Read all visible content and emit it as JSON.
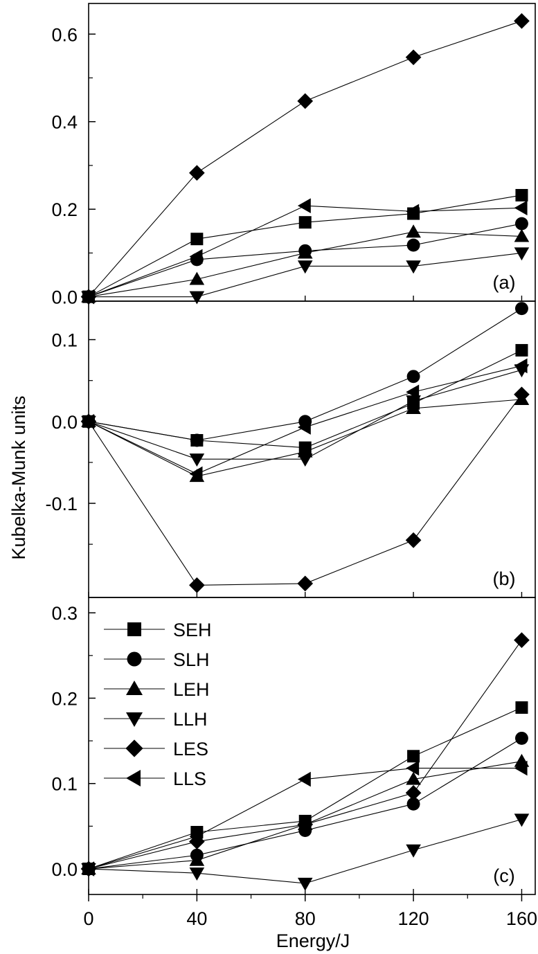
{
  "chart_data": {
    "type": "line",
    "shared_x": {
      "values": [
        0,
        40,
        80,
        120,
        160
      ],
      "label": "Energy/J",
      "lim": [
        0,
        165
      ],
      "ticks": [
        0,
        40,
        80,
        120,
        160
      ],
      "tick_labels": [
        "0",
        "40",
        "80",
        "120",
        "160"
      ]
    },
    "ylabel": "Kubelka-Munk units",
    "legend": {
      "position": "top-left of panel (c)",
      "entries": [
        {
          "name": "SEH",
          "marker": "square"
        },
        {
          "name": "SLH",
          "marker": "circle"
        },
        {
          "name": "LEH",
          "marker": "triangle-up"
        },
        {
          "name": "LLH",
          "marker": "triangle-down"
        },
        {
          "name": "LES",
          "marker": "diamond"
        },
        {
          "name": "LLS",
          "marker": "triangle-left"
        }
      ]
    },
    "panels": [
      {
        "tag": "(a)",
        "ylim": [
          -0.01,
          0.67
        ],
        "yticks": [
          0.0,
          0.2,
          0.4,
          0.6
        ],
        "ytick_labels": [
          "0.0",
          "0.2",
          "0.4",
          "0.6"
        ],
        "series": [
          {
            "name": "SEH",
            "values": [
              0.0,
              0.132,
              0.17,
              0.19,
              0.232
            ]
          },
          {
            "name": "SLH",
            "values": [
              0.0,
              0.085,
              0.105,
              0.118,
              0.167
            ]
          },
          {
            "name": "LEH",
            "values": [
              0.0,
              0.04,
              0.1,
              0.148,
              0.138
            ]
          },
          {
            "name": "LLH",
            "values": [
              0.0,
              0.0,
              0.07,
              0.07,
              0.1
            ]
          },
          {
            "name": "LES",
            "values": [
              0.0,
              0.283,
              0.447,
              0.547,
              0.63
            ]
          },
          {
            "name": "LLS",
            "values": [
              0.0,
              0.092,
              0.208,
              0.195,
              0.203
            ]
          }
        ]
      },
      {
        "tag": "(b)",
        "ylim": [
          -0.215,
          0.147
        ],
        "yticks": [
          -0.1,
          0.0,
          0.1
        ],
        "ytick_labels": [
          "-0.1",
          "0.0",
          "0.1"
        ],
        "series": [
          {
            "name": "SEH",
            "values": [
              0.0,
              -0.023,
              -0.032,
              0.022,
              0.087
            ]
          },
          {
            "name": "SLH",
            "values": [
              0.0,
              -0.023,
              0.0,
              0.055,
              0.138
            ]
          },
          {
            "name": "LEH",
            "values": [
              0.0,
              -0.067,
              -0.037,
              0.016,
              0.027
            ]
          },
          {
            "name": "LLH",
            "values": [
              0.0,
              -0.046,
              -0.046,
              0.025,
              0.063
            ]
          },
          {
            "name": "LES",
            "values": [
              0.0,
              -0.2,
              -0.198,
              -0.145,
              0.033
            ]
          },
          {
            "name": "LLS",
            "values": [
              0.0,
              -0.064,
              -0.007,
              0.036,
              0.068
            ]
          }
        ]
      },
      {
        "tag": "(c)",
        "ylim": [
          -0.03,
          0.318
        ],
        "yticks": [
          0.0,
          0.1,
          0.2,
          0.3
        ],
        "ytick_labels": [
          "0.0",
          "0.1",
          "0.2",
          "0.3"
        ],
        "series": [
          {
            "name": "SEH",
            "values": [
              0.0,
              0.043,
              0.056,
              0.132,
              0.189
            ]
          },
          {
            "name": "SLH",
            "values": [
              0.0,
              0.016,
              0.045,
              0.076,
              0.153
            ]
          },
          {
            "name": "LEH",
            "values": [
              0.0,
              0.01,
              0.052,
              0.105,
              0.126
            ]
          },
          {
            "name": "LLH",
            "values": [
              0.0,
              -0.005,
              -0.017,
              0.022,
              0.058
            ]
          },
          {
            "name": "LES",
            "values": [
              0.0,
              0.032,
              0.052,
              0.089,
              0.268
            ]
          },
          {
            "name": "LLS",
            "values": [
              0.0,
              0.038,
              0.105,
              0.118,
              0.118
            ]
          }
        ]
      }
    ]
  }
}
